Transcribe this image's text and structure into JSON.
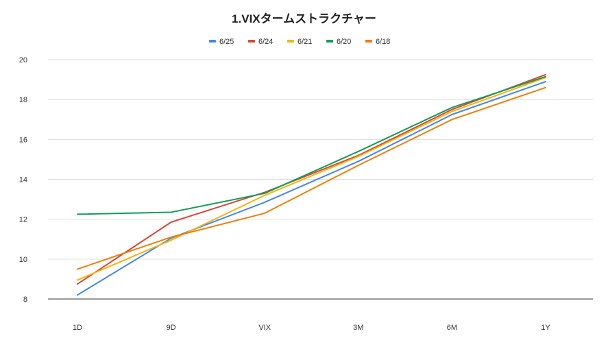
{
  "chart_data": {
    "type": "line",
    "title": "1.VIXタームストラクチャー",
    "xlabel": "",
    "ylabel": "",
    "categories": [
      "1D",
      "9D",
      "VIX",
      "3M",
      "6M",
      "1Y"
    ],
    "ylim": [
      8,
      20
    ],
    "yticks": [
      8,
      10,
      12,
      14,
      16,
      18,
      20
    ],
    "grid": true,
    "legend_position": "top",
    "series": [
      {
        "name": "6/25",
        "color": "#4285f4",
        "values": [
          8.2,
          11.05,
          12.85,
          14.9,
          17.25,
          18.9
        ]
      },
      {
        "name": "6/24",
        "color": "#db4437",
        "values": [
          8.75,
          11.85,
          13.35,
          15.2,
          17.5,
          19.25
        ]
      },
      {
        "name": "6/21",
        "color": "#f4b400",
        "values": [
          8.95,
          10.95,
          13.2,
          15.15,
          17.4,
          19.1
        ]
      },
      {
        "name": "6/20",
        "color": "#0f9d58",
        "values": [
          12.25,
          12.35,
          13.3,
          15.4,
          17.6,
          19.15
        ]
      },
      {
        "name": "6/18",
        "color": "#f57c00",
        "values": [
          9.5,
          11.1,
          12.3,
          14.7,
          17.0,
          18.6
        ]
      }
    ]
  }
}
